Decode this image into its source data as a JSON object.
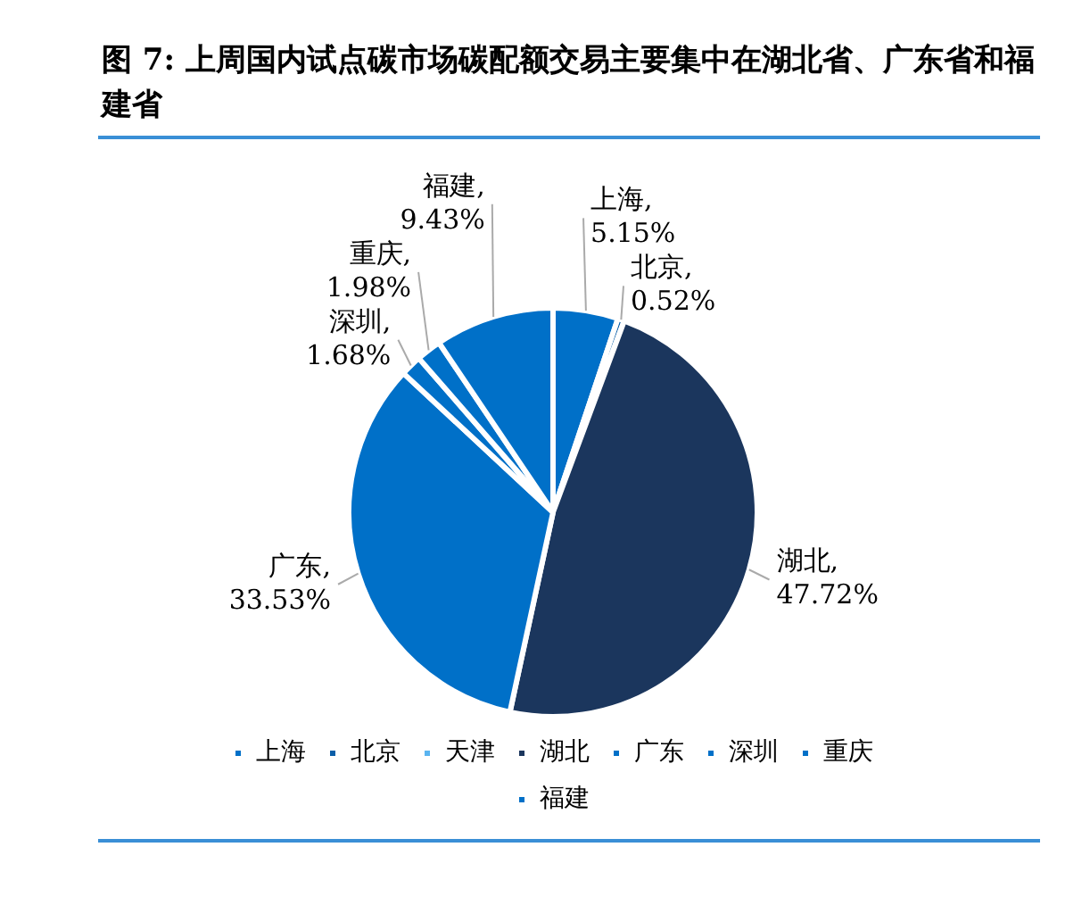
{
  "chart_data": {
    "type": "pie",
    "title": "图 7: 上周国内试点碳市场碳配额交易主要集中在湖北省、广东省和福建省",
    "categories": [
      "上海",
      "北京",
      "天津",
      "湖北",
      "广东",
      "深圳",
      "重庆",
      "福建"
    ],
    "values": [
      5.15,
      0.52,
      0,
      47.72,
      33.53,
      1.68,
      1.98,
      9.43
    ],
    "colors": [
      "#0070c8",
      "#0a5ea8",
      "#5ab4f0",
      "#1b365d",
      "#0070c8",
      "#0070c8",
      "#0070c8",
      "#0070c8"
    ],
    "value_labels": [
      "上海,\n5.15%",
      "北京,\n0.52%",
      null,
      "湖北,\n47.72%",
      "广东,\n33.53%",
      "深圳,\n1.68%",
      "重庆,\n1.98%",
      "福建,\n9.43%"
    ],
    "legend": "bottom"
  }
}
